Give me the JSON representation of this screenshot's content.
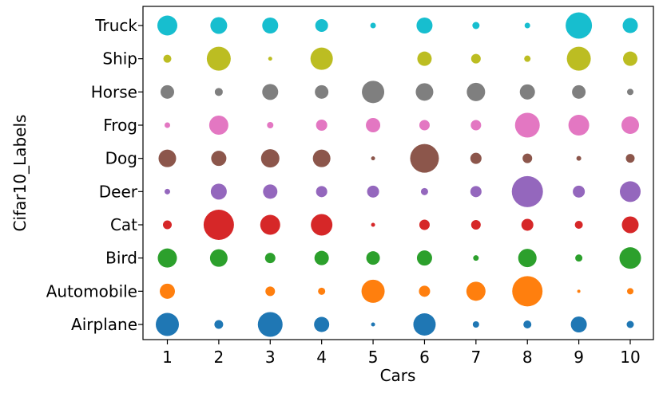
{
  "chart_data": {
    "type": "scatter",
    "title": "",
    "xlabel": "Cars",
    "ylabel": "Cifar10_Labels",
    "x": [
      "1",
      "2",
      "3",
      "4",
      "5",
      "6",
      "7",
      "8",
      "9",
      "10"
    ],
    "categories": [
      "Airplane",
      "Automobile",
      "Bird",
      "Cat",
      "Deer",
      "Dog",
      "Frog",
      "Horse",
      "Ship",
      "Truck"
    ],
    "size_encoding": "bubble radius",
    "grid": false,
    "legend": "none",
    "series": [
      {
        "category": "Airplane",
        "color": "#1f77b4",
        "sizes": [
          14.5,
          5.5,
          15.5,
          9.5,
          2.5,
          14,
          4,
          5,
          10,
          4.5
        ]
      },
      {
        "category": "Automobile",
        "color": "#ff7f0e",
        "sizes": [
          9.5,
          0,
          6,
          4.5,
          14.5,
          7,
          12,
          19,
          2,
          4
        ]
      },
      {
        "category": "Bird",
        "color": "#2ca02c",
        "sizes": [
          12,
          11,
          6.5,
          9,
          8.5,
          9.5,
          3.5,
          11.5,
          4.5,
          13.5
        ]
      },
      {
        "category": "Cat",
        "color": "#d62728",
        "sizes": [
          5.5,
          19,
          12.5,
          13.5,
          2.5,
          6.5,
          6,
          7.5,
          5,
          10.5
        ]
      },
      {
        "category": "Deer",
        "color": "#9467bd",
        "sizes": [
          3.5,
          10,
          9,
          7,
          7.5,
          4.5,
          7,
          19.5,
          7.5,
          13
        ]
      },
      {
        "category": "Dog",
        "color": "#8c564b",
        "sizes": [
          11,
          9.5,
          11.5,
          11,
          2.5,
          18,
          7,
          6,
          3,
          5.5
        ]
      },
      {
        "category": "Frog",
        "color": "#e377c2",
        "sizes": [
          3.5,
          12,
          4,
          7,
          9,
          6.5,
          6.5,
          15.5,
          13,
          11
        ]
      },
      {
        "category": "Horse",
        "color": "#7f7f7f",
        "sizes": [
          8.5,
          5,
          10,
          8.5,
          14,
          11,
          11.5,
          9.5,
          8.5,
          4
        ]
      },
      {
        "category": "Ship",
        "color": "#bcbd22",
        "sizes": [
          5,
          15,
          2.5,
          14,
          0,
          9,
          6,
          4,
          15,
          9
        ]
      },
      {
        "category": "Truck",
        "color": "#17becf",
        "sizes": [
          12.5,
          10.5,
          10,
          8,
          3.5,
          10,
          4.5,
          3.5,
          16.5,
          9.5
        ]
      }
    ]
  }
}
